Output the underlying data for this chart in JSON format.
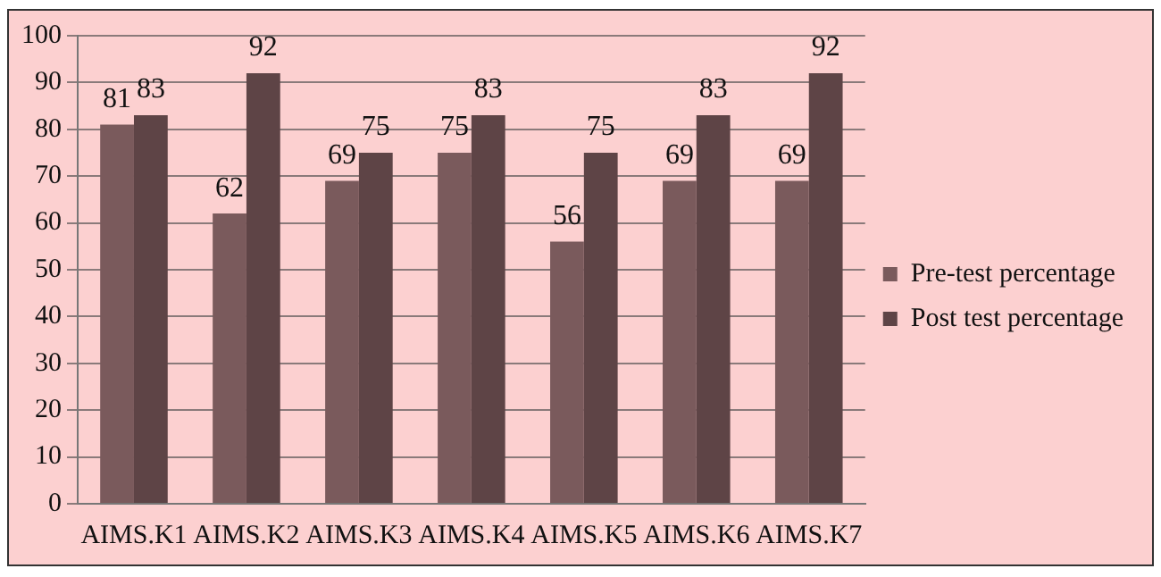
{
  "chart_data": {
    "type": "bar",
    "categories": [
      "AIMS.K1",
      "AIMS.K2",
      "AIMS.K3",
      "AIMS.K4",
      "AIMS.K5",
      "AIMS.K6",
      "AIMS.K7"
    ],
    "series": [
      {
        "name": "Pre-test percentage",
        "color": "#7a5a5c",
        "values": [
          81,
          62,
          69,
          75,
          56,
          69,
          69
        ]
      },
      {
        "name": "Post test percentage",
        "color": "#5e4446",
        "values": [
          83,
          92,
          75,
          83,
          75,
          83,
          92
        ]
      }
    ],
    "ylim": [
      0,
      100
    ],
    "yticks": [
      0,
      10,
      20,
      30,
      40,
      50,
      60,
      70,
      80,
      90,
      100
    ],
    "grid": "y",
    "legend": "right",
    "data_labels": true
  }
}
